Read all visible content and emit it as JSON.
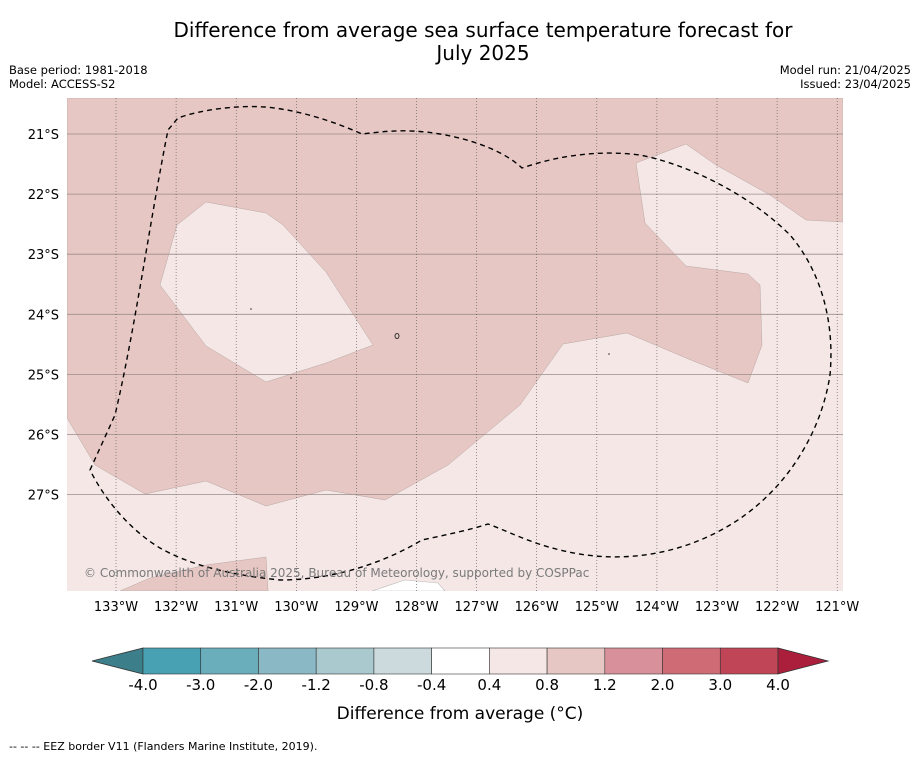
{
  "title_line1": "Difference from average sea surface temperature forecast for",
  "title_line2": "July 2025",
  "left_meta": {
    "base_period": "Base period: 1981-2018",
    "model": "Model: ACCESS-S2"
  },
  "right_meta": {
    "model_run": "Model run: 21/04/2025",
    "issued": "Issued: 23/04/2025"
  },
  "copyright": "© Commonwealth of Australia 2025, Bureau of Meteorology, supported by COSPPac",
  "lat_labels": [
    "21°S",
    "22°S",
    "23°S",
    "24°S",
    "25°S",
    "26°S",
    "27°S"
  ],
  "lon_labels": [
    "133°W",
    "132°W",
    "131°W",
    "130°W",
    "129°W",
    "128°W",
    "127°W",
    "126°W",
    "125°W",
    "124°W",
    "123°W",
    "122°W",
    "121°W"
  ],
  "colorbar": {
    "ticks": [
      "-4.0",
      "-3.0",
      "-2.0",
      "-1.2",
      "-0.8",
      "-0.4",
      "0.4",
      "0.8",
      "1.2",
      "2.0",
      "3.0",
      "4.0"
    ],
    "colors": [
      "#3c7f8b",
      "#47a1b3",
      "#6aaebc",
      "#8ab8c4",
      "#a9c9ce",
      "#ccdadd",
      "#ffffff",
      "#f4e7e6",
      "#e7c7c3",
      "#d8909a",
      "#cf6b75",
      "#c04657",
      "#ab1f3c"
    ],
    "title": "Difference from average (°C)"
  },
  "legend_text": "--  --  -- EEZ border V11 (Flanders Marine Institute, 2019).",
  "map_colors": {
    "anomaly_08_12": "#e7c7c3",
    "anomaly_04_08": "#f4e7e6"
  }
}
